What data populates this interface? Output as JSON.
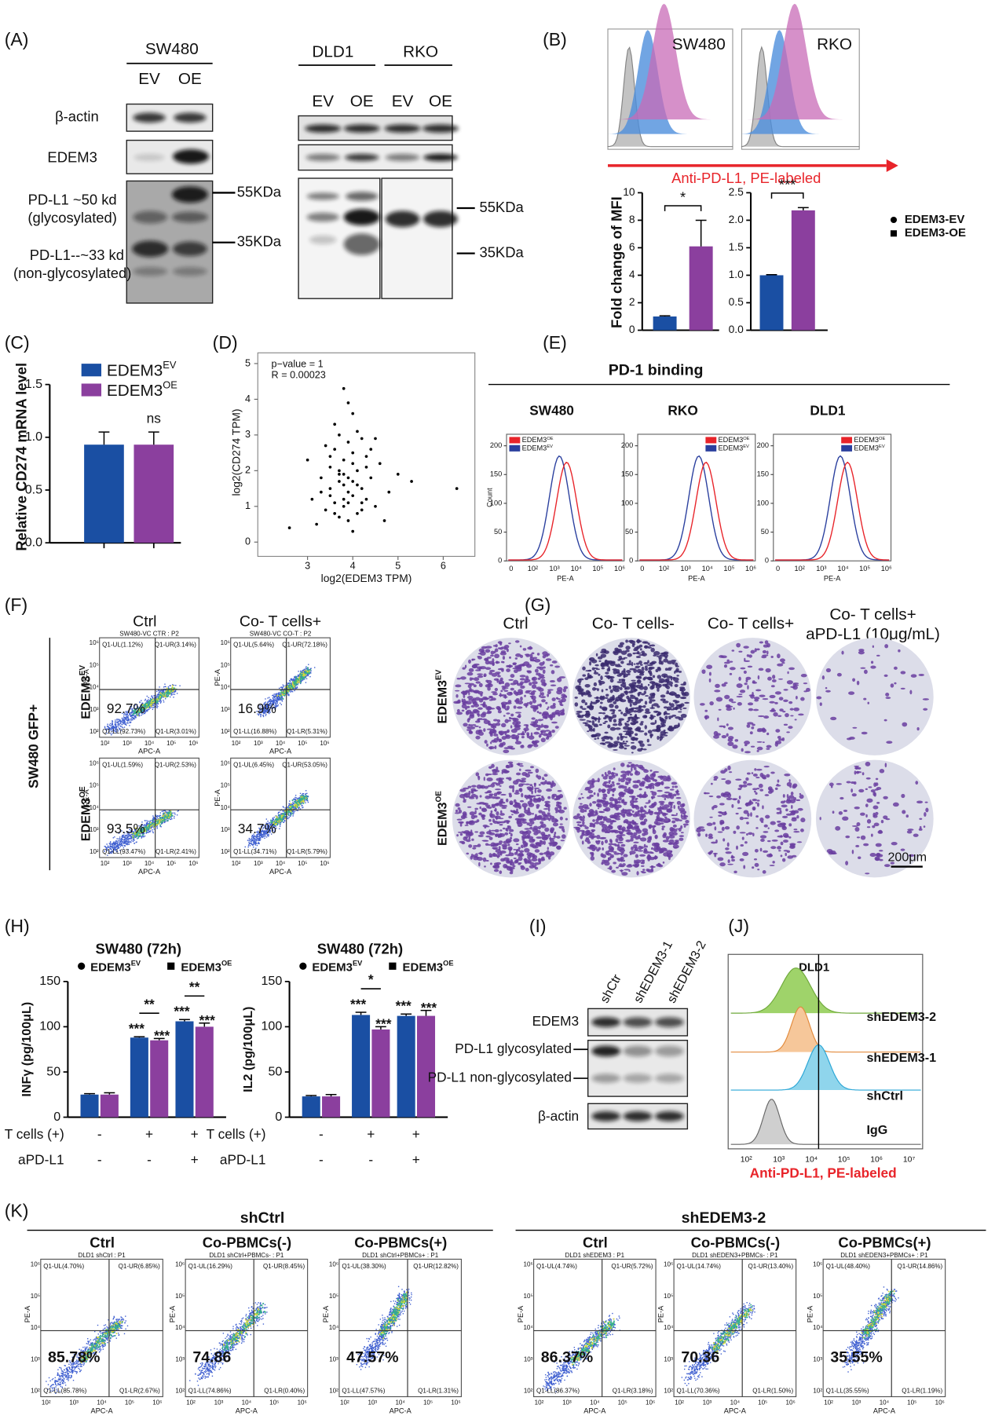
{
  "panel_a": {
    "label": "(A)",
    "sw480": "SW480",
    "lanes_sw480": [
      "EV",
      "OE"
    ],
    "rows": [
      "β-actin",
      "EDEM3",
      "PD-L1 ~50 kd",
      "(glycosylated)",
      "PD-L1--~33 kd",
      "(non-glycosylated)"
    ],
    "markers": [
      "55KDa",
      "35KDa"
    ],
    "dld1": "DLD1",
    "rko": "RKO",
    "lanes_right": [
      "EV",
      "OE",
      "EV",
      "OE"
    ]
  },
  "panel_b": {
    "label": "(B)",
    "histograms": [
      "SW480",
      "RKO"
    ],
    "axis_label": "Anti-PD-L1, PE-labeled",
    "ylabel": "Fold  change of MFI",
    "series": [
      {
        "name": "EDEM3-EV",
        "color": "#1a4fa3"
      },
      {
        "name": "EDEM3-OE",
        "color": "#8b3f9e"
      }
    ],
    "charts": [
      {
        "ylim": [
          0,
          10
        ],
        "yticks": [
          0,
          2,
          4,
          6,
          8,
          10
        ],
        "values": [
          1,
          6.1
        ],
        "errors": [
          0.05,
          1.9
        ],
        "sig": "*"
      },
      {
        "ylim": [
          0,
          2.5
        ],
        "yticks": [
          {
            "value": 0,
            "label": "0.0"
          },
          {
            "value": 0.5,
            "label": "0.5"
          },
          {
            "value": 1,
            "label": "1.0"
          },
          {
            "value": 1.5,
            "label": "1.5"
          },
          {
            "value": 2,
            "label": "2.0"
          },
          {
            "value": 2.5,
            "label": "2.5"
          }
        ],
        "values": [
          1,
          2.18
        ],
        "errors": [
          0.01,
          0.05
        ],
        "sig": "***"
      }
    ]
  },
  "panel_c": {
    "label": "(C)",
    "ylabel": "Relative CD274 mRNA level",
    "ylim": [
      0,
      1.5
    ],
    "yticks": [
      {
        "value": 0,
        "label": "0.0"
      },
      {
        "value": 0.5,
        "label": "0.5"
      },
      {
        "value": 1,
        "label": "1.0"
      },
      {
        "value": 1.5,
        "label": "1.5"
      }
    ],
    "series": [
      {
        "base": "EDEM3",
        "sup": "EV",
        "color": "#1a4fa3",
        "values": [
          0.93
        ],
        "errors": [
          0.12
        ]
      },
      {
        "base": "EDEM3",
        "sup": "OE",
        "color": "#8b3f9e",
        "values": [
          0.93
        ],
        "errors": [
          0.12
        ]
      }
    ],
    "annotation": "ns"
  },
  "panel_d": {
    "label": "(D)",
    "stats": [
      "p−value = 1",
      "R = 0.00023"
    ],
    "xlabel": "log2(EDEM3 TPM)",
    "ylabel": "log2(CD274 TPM)",
    "xlim": [
      1.9,
      6.7
    ],
    "ylim": [
      -0.4,
      5.3
    ],
    "xticks": [
      3,
      4,
      5,
      6
    ],
    "yticks": [
      0,
      1,
      2,
      3,
      4,
      5
    ],
    "x": [
      3.1,
      3.3,
      3.4,
      3.5,
      3.5,
      3.6,
      3.6,
      3.7,
      3.7,
      3.7,
      3.8,
      3.8,
      3.8,
      3.9,
      3.9,
      3.9,
      4.0,
      4.0,
      4.0,
      4.1,
      4.1,
      4.2,
      4.2,
      4.3,
      4.3,
      4.4,
      4.5,
      4.6,
      4.8,
      5.0,
      3.2,
      3.4,
      3.6,
      3.8,
      4.0,
      4.2,
      4.4,
      3.5,
      3.7,
      3.9,
      4.1,
      4.3,
      3.6,
      3.8,
      4.0,
      2.6,
      5.3,
      6.3,
      3.9,
      3.0,
      4.7,
      3.3,
      4.5,
      3.8,
      4.0,
      3.7,
      4.2,
      3.5,
      3.9,
      4.1
    ],
    "y": [
      1.2,
      1.8,
      0.9,
      2.1,
      1.5,
      2.6,
      1.1,
      1.9,
      0.7,
      3.0,
      1.6,
      2.3,
      1.0,
      1.4,
      2.8,
      0.6,
      1.7,
      2.2,
      1.3,
      2.0,
      0.8,
      1.5,
      2.9,
      1.2,
      2.4,
      1.8,
      1.0,
      2.2,
      1.4,
      1.9,
      0.5,
      2.7,
      3.3,
      4.3,
      3.6,
      0.9,
      2.6,
      1.3,
      2.0,
      1.1,
      1.6,
      2.1,
      0.8,
      1.9,
      2.5,
      0.4,
      1.7,
      1.5,
      3.9,
      2.3,
      0.6,
      1.4,
      2.9,
      1.2,
      0.3,
      1.7,
      1.1,
      2.4,
      1.8,
      3.1
    ]
  },
  "panel_e": {
    "label": "(E)",
    "title": "PD-1 binding",
    "plots": [
      "SW480",
      "RKO",
      "DLD1"
    ],
    "legend": [
      {
        "base": "EDEM3",
        "sup": "OE",
        "color": "#e8242a"
      },
      {
        "base": "EDEM3",
        "sup": "EV",
        "color": "#2a3f9e"
      }
    ],
    "ylabel": "Count",
    "xlabel": "PE-A",
    "xticks": [
      "0",
      "10²",
      "10³",
      "10⁴",
      "10⁵",
      "10⁶"
    ],
    "ylim": [
      0,
      220
    ],
    "yticks": [
      0,
      50,
      100,
      150,
      200
    ]
  },
  "panel_f": {
    "label": "(F)",
    "columns": [
      "Ctrl",
      "Co- T cells+"
    ],
    "rows": [
      {
        "base": "EDEM3",
        "sup": "EV"
      },
      {
        "base": "EDEM3",
        "sup": "OE"
      }
    ],
    "side_label": "SW480 GFP+",
    "xlabel": "APC-A",
    "ylabel": "PE-A",
    "ticks": [
      "10²",
      "10³",
      "10⁴",
      "10⁵",
      "10⁶"
    ],
    "plots": [
      {
        "header": "SW480-VC CTR : P2",
        "quadrants": [
          "Q1-UL(1.12%)",
          "Q1-UR(3.14%)",
          "Q1-LL(92.73%)",
          "Q1-LR(3.01%)"
        ],
        "percent": "92.7%"
      },
      {
        "header": "SW480-VC CO-T : P2",
        "quadrants": [
          "Q1-UL(5.64%)",
          "Q1-UR(72.18%)",
          "Q1-LL(16.88%)",
          "Q1-LR(5.31%)"
        ],
        "percent": "16.9%"
      },
      {
        "quadrants": [
          "Q1-UL(1.59%)",
          "Q1-UR(2.53%)",
          "Q1-LL(93.47%)",
          "Q1-LR(2.41%)"
        ],
        "percent": "93.5%"
      },
      {
        "quadrants": [
          "Q1-UL(6.45%)",
          "Q1-UR(53.05%)",
          "Q1-LL(34.71%)",
          "Q1-LR(5.79%)"
        ],
        "percent": "34.7%"
      }
    ]
  },
  "panel_g": {
    "label": "(G)",
    "columns": [
      "Ctrl",
      "Co- T cells-",
      "Co- T cells+"
    ],
    "last_column": [
      "Co- T cells+",
      "aPD-L1 (10μg/mL)"
    ],
    "rows": [
      {
        "base": "EDEM3",
        "sup": "EV"
      },
      {
        "base": "EDEM3",
        "sup": "OE"
      }
    ],
    "scale_bar": "200μm"
  },
  "panel_h": {
    "label": "(H)",
    "series": [
      {
        "base": "EDEM3",
        "sup": "EV",
        "color": "#1a4fa3"
      },
      {
        "base": "EDEM3",
        "sup": "OE",
        "color": "#8b3f9e"
      }
    ],
    "conditions": {
      "t_cells_label": "T cells (+)",
      "t_cells": [
        "-",
        "+",
        "+"
      ],
      "apdl1_label": "aPD-L1",
      "apdl1": [
        "-",
        "-",
        "+"
      ]
    },
    "charts": [
      {
        "title": "SW480 (72h)",
        "ylabel": "INFγ (pg/100μL)",
        "ylim": [
          0,
          150
        ],
        "yticks": [
          0,
          50,
          100,
          150
        ],
        "values": [
          [
            25,
            88,
            106
          ],
          [
            25,
            85,
            100
          ]
        ],
        "errors": [
          [
            1,
            1,
            2
          ],
          [
            2,
            2,
            4
          ]
        ],
        "brackets": [
          null,
          "**",
          "**"
        ],
        "sig": [
          [
            null,
            "***",
            "***"
          ],
          [
            null,
            "***",
            "***"
          ]
        ]
      },
      {
        "title": "SW480 (72h)",
        "ylabel": "IL2 (pg/100μL)",
        "ylim": [
          0,
          150
        ],
        "yticks": [
          0,
          50,
          100,
          150
        ],
        "values": [
          [
            23,
            113,
            112
          ],
          [
            23,
            97,
            112
          ]
        ],
        "errors": [
          [
            1,
            3,
            2
          ],
          [
            2,
            3,
            6
          ]
        ],
        "brackets": [
          null,
          "*",
          null
        ],
        "sig": [
          [
            null,
            "***",
            "***"
          ],
          [
            null,
            "***",
            "***"
          ]
        ]
      }
    ]
  },
  "panel_i": {
    "label": "(I)",
    "lanes": [
      "shCtr",
      "shEDEM3-1",
      "shEDEM3-2"
    ],
    "rows": [
      "EDEM3",
      "PD-L1 glycosylated",
      "PD-L1 non-glycosylated",
      "β-actin"
    ]
  },
  "panel_j": {
    "label": "(J)",
    "title": "DLD1",
    "samples": [
      "shEDEM3-2",
      "shEDEM3-1",
      "shCtrl",
      "IgG"
    ],
    "xlabel": "Anti-PD-L1, PE-labeled",
    "xticks": [
      "10²",
      "10³",
      "10⁴",
      "10⁵",
      "10⁶",
      "10⁷"
    ]
  },
  "panel_k": {
    "label": "(K)",
    "groups": [
      "shCtrl",
      "shEDEM3-2"
    ],
    "columns": [
      "Ctrl",
      "Co-PBMCs(-)",
      "Co-PBMCs(+)"
    ],
    "xlabel": "APC-A",
    "ylabel": "PE-A",
    "ticks": [
      "10²",
      "10³",
      "10⁴",
      "10⁵",
      "10⁶"
    ],
    "plots": [
      {
        "header": "DLD1 shCtrl : P1",
        "quadrants": [
          "Q1-UL(4.70%)",
          "Q1-UR(6.85%)",
          "Q1-LL(85.78%)",
          "Q1-LR(2.67%)"
        ],
        "percent": "85.78%"
      },
      {
        "header": "DLD1 shCtrl+PBMCs- : P1",
        "quadrants": [
          "Q1-UL(16.29%)",
          "Q1-UR(8.45%)",
          "Q1-LL(74.86%)",
          "Q1-LR(0.40%)"
        ],
        "percent": "74.86"
      },
      {
        "header": "DLD1 shCtrl+PBMCs+ : P1",
        "quadrants": [
          "Q1-UL(38.30%)",
          "Q1-UR(12.82%)",
          "Q1-LL(47.57%)",
          "Q1-LR(1.31%)"
        ],
        "percent": "47.57%"
      },
      {
        "header": "DLD1 shEDEM3 : P1",
        "quadrants": [
          "Q1-UL(4.74%)",
          "Q1-UR(5.72%)",
          "Q1-LL(86.37%)",
          "Q1-LR(3.18%)"
        ],
        "percent": "86.37%"
      },
      {
        "header": "DLD1 shEDEN3+PBMCs- : P1",
        "quadrants": [
          "Q1-UL(14.74%)",
          "Q1-UR(13.40%)",
          "Q1-LL(70.36%)",
          "Q1-LR(1.50%)"
        ],
        "percent": "70.36"
      },
      {
        "header": "DLD1 shEDEN3+PBMCs+ : P1",
        "quadrants": [
          "Q1-UL(48.40%)",
          "Q1-UR(14.86%)",
          "Q1-LL(35.55%)",
          "Q1-LR(1.19%)"
        ],
        "percent": "35.55%"
      }
    ]
  }
}
